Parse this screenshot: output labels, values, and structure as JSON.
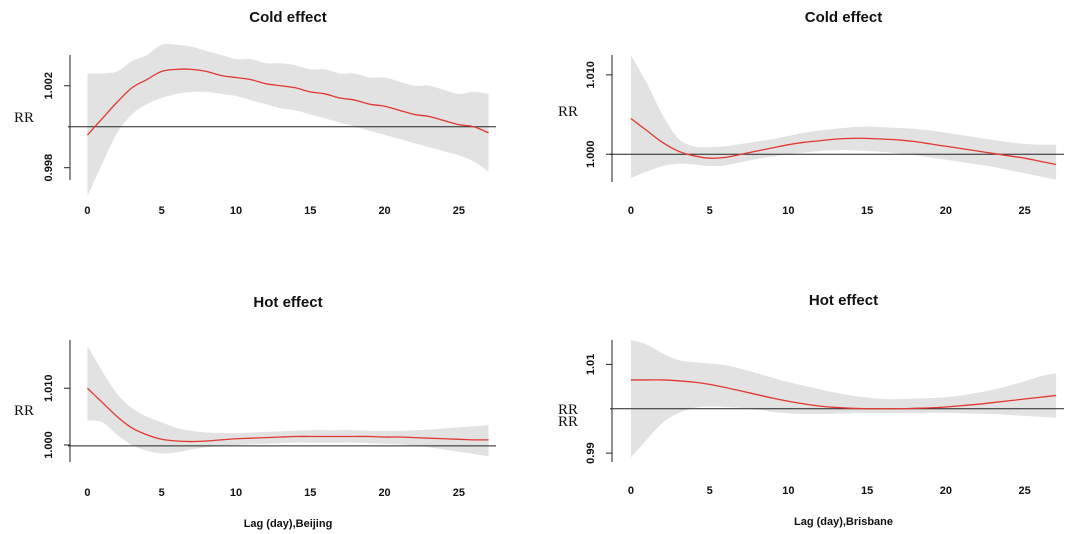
{
  "chart_data": [
    {
      "type": "line",
      "title": "Cold effect",
      "ylabel": "RR",
      "xlabel": "",
      "xlim": [
        -0.5,
        27.5
      ],
      "ylim": [
        0.9974,
        1.0035
      ],
      "x_ticks": [
        0,
        5,
        10,
        15,
        20,
        25
      ],
      "x_tick_labels": [
        "0",
        "5",
        "10",
        "15",
        "20",
        "25"
      ],
      "y_ticks": [
        0.998,
        1.002
      ],
      "y_tick_labels": [
        "0.998",
        "1.002"
      ],
      "reference_line": 1.0,
      "ref_label": "",
      "x": [
        0,
        1,
        2,
        3,
        4,
        5,
        6,
        7,
        8,
        9,
        10,
        11,
        12,
        13,
        14,
        15,
        16,
        17,
        18,
        19,
        20,
        21,
        22,
        23,
        24,
        25,
        26,
        27
      ],
      "series": [
        {
          "values": [
            0.9996,
            1.0004,
            1.0012,
            1.0019,
            1.0023,
            1.0027,
            1.0028,
            1.0028,
            1.0027,
            1.0025,
            1.0024,
            1.0023,
            1.0021,
            1.002,
            1.0019,
            1.0017,
            1.0016,
            1.0014,
            1.0013,
            1.0011,
            1.001,
            1.0008,
            1.0006,
            1.0005,
            1.0003,
            1.0001,
            1.0,
            0.9997
          ]
        }
      ],
      "band_lower": [
        0.9966,
        0.9982,
        0.9997,
        1.0006,
        1.0011,
        1.0014,
        1.0016,
        1.0017,
        1.0017,
        1.0016,
        1.0015,
        1.0013,
        1.0011,
        1.0009,
        1.0008,
        1.0006,
        1.0004,
        1.0002,
        1.0,
        0.9998,
        0.9996,
        0.9994,
        0.9992,
        0.999,
        0.9988,
        0.9986,
        0.9983,
        0.9978
      ],
      "band_upper": [
        1.0026,
        1.0026,
        1.0027,
        1.0032,
        1.0035,
        1.004,
        1.004,
        1.0039,
        1.0037,
        1.0035,
        1.0033,
        1.0033,
        1.0031,
        1.0031,
        1.003,
        1.0028,
        1.0028,
        1.0026,
        1.0026,
        1.0024,
        1.0024,
        1.0022,
        1.002,
        1.002,
        1.0018,
        1.0016,
        1.0017,
        1.0016
      ],
      "line_color": "#e0382e",
      "band_color": "#e2e2e2",
      "ref_color": "#222222"
    },
    {
      "type": "line",
      "title": "Cold effect",
      "ylabel": "RR",
      "xlabel": "",
      "xlim": [
        -0.5,
        27.5
      ],
      "ylim": [
        0.9965,
        1.0125
      ],
      "x_ticks": [
        0,
        5,
        10,
        15,
        20,
        25
      ],
      "x_tick_labels": [
        "0",
        "5",
        "10",
        "15",
        "20",
        "25"
      ],
      "y_ticks": [
        1.0,
        1.01
      ],
      "y_tick_labels": [
        "1.000",
        "1.010"
      ],
      "reference_line": 1.0,
      "ref_label": "",
      "x": [
        0,
        1,
        2,
        3,
        4,
        5,
        6,
        7,
        8,
        9,
        10,
        11,
        12,
        13,
        14,
        15,
        16,
        17,
        18,
        19,
        20,
        21,
        22,
        23,
        24,
        25,
        26,
        27
      ],
      "series": [
        {
          "values": [
            1.0045,
            1.003,
            1.0015,
            1.0004,
            0.9998,
            0.9995,
            0.9996,
            1.0,
            1.0004,
            1.0008,
            1.0012,
            1.0015,
            1.0017,
            1.0019,
            1.002,
            1.002,
            1.0019,
            1.0018,
            1.0016,
            1.0013,
            1.001,
            1.0007,
            1.0004,
            1.0001,
            0.9998,
            0.9995,
            0.9991,
            0.9987
          ]
        }
      ],
      "band_lower": [
        0.997,
        0.9978,
        0.9985,
        0.9988,
        0.9987,
        0.9985,
        0.9986,
        0.999,
        0.9994,
        0.9997,
        1.0,
        1.0002,
        1.0004,
        1.0005,
        1.0005,
        1.0004,
        1.0003,
        1.0001,
        0.9999,
        0.9996,
        0.9993,
        0.999,
        0.9987,
        0.9984,
        0.998,
        0.9976,
        0.9972,
        0.9968
      ],
      "band_upper": [
        1.0125,
        1.009,
        1.005,
        1.002,
        1.001,
        1.0009,
        1.001,
        1.0013,
        1.0016,
        1.0019,
        1.0023,
        1.0027,
        1.003,
        1.0032,
        1.0034,
        1.0035,
        1.0034,
        1.0033,
        1.0032,
        1.003,
        1.0027,
        1.0024,
        1.0021,
        1.0018,
        1.0015,
        1.0013,
        1.0012,
        1.0012
      ],
      "line_color": "#e0382e",
      "band_color": "#e2e2e2",
      "ref_color": "#222222"
    },
    {
      "type": "line",
      "title": "Hot effect",
      "ylabel": "RR",
      "xlabel": "Lag (day),Beijing",
      "xlim": [
        -0.5,
        27.5
      ],
      "ylim": [
        0.997,
        1.0185
      ],
      "x_ticks": [
        0,
        5,
        10,
        15,
        20,
        25
      ],
      "x_tick_labels": [
        "0",
        "5",
        "10",
        "15",
        "20",
        "25"
      ],
      "y_ticks": [
        1.0,
        1.01
      ],
      "y_tick_labels": [
        "1.000",
        "1.010"
      ],
      "reference_line": 0.99985,
      "ref_label": "",
      "x": [
        0,
        1,
        2,
        3,
        4,
        5,
        6,
        7,
        8,
        9,
        10,
        11,
        12,
        13,
        14,
        15,
        16,
        17,
        18,
        19,
        20,
        21,
        22,
        23,
        24,
        25,
        26,
        27
      ],
      "series": [
        {
          "values": [
            1.01,
            1.0075,
            1.005,
            1.003,
            1.0018,
            1.001,
            1.0007,
            1.0006,
            1.0007,
            1.0009,
            1.0011,
            1.0012,
            1.0013,
            1.0014,
            1.0015,
            1.0015,
            1.0015,
            1.0015,
            1.0015,
            1.0015,
            1.0014,
            1.0014,
            1.0013,
            1.0012,
            1.0011,
            1.001,
            1.0009,
            1.0009
          ]
        }
      ],
      "band_lower": [
        1.0043,
        1.004,
        1.0018,
        1.0,
        0.999,
        0.9985,
        0.9987,
        0.9992,
        0.9996,
        0.9998,
        1.0,
        1.0001,
        1.0002,
        1.0003,
        1.0004,
        1.0004,
        1.0004,
        1.0004,
        1.0004,
        1.0003,
        1.0002,
        1.0001,
        0.9999,
        0.9996,
        0.9992,
        0.9988,
        0.9984,
        0.998
      ],
      "band_upper": [
        1.0175,
        1.013,
        1.009,
        1.0065,
        1.005,
        1.004,
        1.003,
        1.0025,
        1.0022,
        1.0021,
        1.0021,
        1.0022,
        1.0023,
        1.0024,
        1.0025,
        1.0026,
        1.0026,
        1.0026,
        1.0026,
        1.0025,
        1.0025,
        1.0025,
        1.0026,
        1.0027,
        1.0029,
        1.0031,
        1.0033,
        1.0035
      ],
      "line_color": "#e0382e",
      "band_color": "#e2e2e2",
      "ref_color": "#222222"
    },
    {
      "type": "line",
      "title": "Hot effect",
      "ylabel": "RR",
      "xlabel": "Lag (day),Brisbane",
      "xlim": [
        -0.5,
        27.5
      ],
      "ylim": [
        0.988,
        1.0155
      ],
      "x_ticks": [
        0,
        5,
        10,
        15,
        20,
        25
      ],
      "x_tick_labels": [
        "0",
        "5",
        "10",
        "15",
        "20",
        "25"
      ],
      "y_ticks": [
        0.99,
        1.01
      ],
      "y_tick_labels": [
        "0.99",
        "1.01"
      ],
      "reference_line": 1.0,
      "ref_label": "RR",
      "x": [
        0,
        1,
        2,
        3,
        4,
        5,
        6,
        7,
        8,
        9,
        10,
        11,
        12,
        13,
        14,
        15,
        16,
        17,
        18,
        19,
        20,
        21,
        22,
        23,
        24,
        25,
        26,
        27
      ],
      "series": [
        {
          "values": [
            1.0065,
            1.0065,
            1.0065,
            1.0063,
            1.006,
            1.0055,
            1.0048,
            1.004,
            1.0032,
            1.0024,
            1.0017,
            1.0011,
            1.0006,
            1.0003,
            1.0001,
            1.0,
            1.0,
            1.0,
            1.0001,
            1.0002,
            1.0004,
            1.0007,
            1.001,
            1.0014,
            1.0018,
            1.0022,
            1.0026,
            1.003
          ]
        }
      ],
      "band_lower": [
        0.989,
        0.993,
        0.9968,
        0.999,
        1.0002,
        1.0005,
        1.0004,
        1.0002,
        0.9998,
        0.9993,
        0.999,
        0.9988,
        0.9988,
        0.9989,
        0.999,
        0.999,
        0.999,
        0.999,
        0.999,
        0.9991,
        0.9991,
        0.999,
        0.9989,
        0.9988,
        0.9986,
        0.9984,
        0.9982,
        0.998
      ],
      "band_upper": [
        1.0155,
        1.0145,
        1.0125,
        1.011,
        1.0105,
        1.0102,
        1.0098,
        1.009,
        1.008,
        1.007,
        1.006,
        1.0052,
        1.0044,
        1.0036,
        1.003,
        1.0025,
        1.0022,
        1.0022,
        1.0023,
        1.0024,
        1.0026,
        1.003,
        1.0036,
        1.0043,
        1.0052,
        1.0062,
        1.0073,
        1.008
      ],
      "line_color": "#e0382e",
      "band_color": "#e2e2e2",
      "ref_color": "#222222"
    }
  ]
}
